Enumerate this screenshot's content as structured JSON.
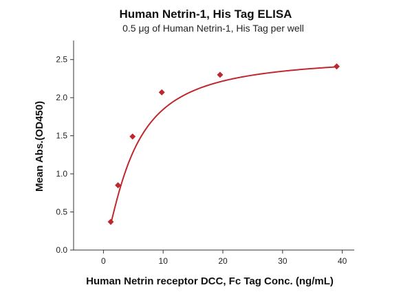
{
  "chart_data": {
    "type": "scatter",
    "title": "Human Netrin-1, His Tag ELISA",
    "subtitle": "0.5 μg of Human Netrin-1, His Tag per well",
    "xlabel": "Human Netrin receptor DCC, Fc Tag Conc. (ng/mL)",
    "ylabel": "Mean Abs.(OD450)",
    "xlim": [
      -5,
      42
    ],
    "ylim": [
      0,
      2.75
    ],
    "x_ticks": [
      0,
      10,
      20,
      30,
      40
    ],
    "x_tick_labels": [
      "0",
      "10",
      "20",
      "30",
      "40"
    ],
    "y_ticks": [
      0.0,
      0.5,
      1.0,
      1.5,
      2.0,
      2.5
    ],
    "y_tick_labels": [
      "0.0",
      "0.5",
      "1.0",
      "1.5",
      "2.0",
      "2.5"
    ],
    "grid": false,
    "series": [
      {
        "x": [
          1.22,
          2.44,
          4.88,
          9.77,
          19.53,
          39.06
        ],
        "y": [
          0.37,
          0.85,
          1.49,
          2.07,
          2.3,
          2.41
        ],
        "marker": "diamond",
        "fit": "four-parameter logistic curve",
        "color": "#c0272d"
      }
    ]
  }
}
